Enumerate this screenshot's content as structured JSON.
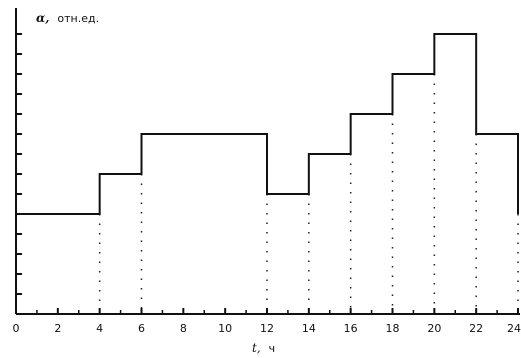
{
  "chart_data": {
    "type": "line",
    "step": true,
    "ylabel_symbol": "α,",
    "ylabel_unit": "отн.ед.",
    "xlabel_symbol": "t,",
    "xlabel_unit": "ч",
    "xlim": [
      0,
      24
    ],
    "ylim": [
      0,
      14
    ],
    "x_ticks": [
      0,
      2,
      4,
      6,
      8,
      10,
      12,
      14,
      16,
      18,
      20,
      22,
      24
    ],
    "y_tick_count": 14,
    "grid": false,
    "dotted_guides": true,
    "series": [
      {
        "steps": [
          {
            "x0": 0,
            "x1": 4,
            "y": 5
          },
          {
            "x0": 4,
            "x1": 6,
            "y": 7
          },
          {
            "x0": 6,
            "x1": 12,
            "y": 9
          },
          {
            "x0": 12,
            "x1": 14,
            "y": 6
          },
          {
            "x0": 14,
            "x1": 16,
            "y": 8
          },
          {
            "x0": 16,
            "x1": 18,
            "y": 10
          },
          {
            "x0": 18,
            "x1": 20,
            "y": 12
          },
          {
            "x0": 20,
            "x1": 22,
            "y": 14
          },
          {
            "x0": 22,
            "x1": 24,
            "y": 9
          }
        ],
        "end_drop_to": 5
      }
    ]
  }
}
